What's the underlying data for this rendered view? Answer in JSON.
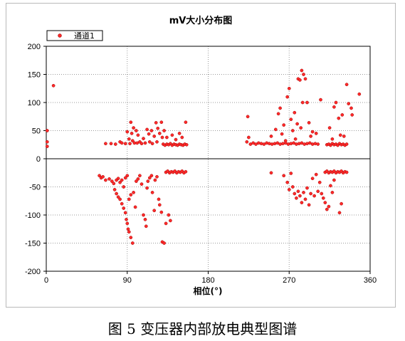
{
  "figure_caption": "图 5  变压器内部放电典型图谱",
  "colors": {
    "point_fill": "#ff2a2a",
    "point_stroke": "#a00000",
    "grid": "#9a9a9a",
    "axis": "#000000",
    "zero_line": "#000000"
  },
  "chart_data": {
    "type": "scatter",
    "title": "mV大小分布图",
    "xlabel": "相位(°)",
    "ylabel": "",
    "xlim": [
      0,
      360
    ],
    "ylim": [
      -200,
      200
    ],
    "x_ticks": [
      0,
      90,
      180,
      270,
      360
    ],
    "y_ticks": [
      200,
      150,
      100,
      50,
      0,
      -50,
      -100,
      -150,
      -200
    ],
    "grid": true,
    "legend_position": "top-left",
    "series": [
      {
        "name": "通道1",
        "points": [
          [
            1,
            50
          ],
          [
            1,
            30
          ],
          [
            1,
            22
          ],
          [
            8,
            130
          ],
          [
            66,
            27
          ],
          [
            72,
            27
          ],
          [
            77,
            26
          ],
          [
            82,
            30
          ],
          [
            84,
            28
          ],
          [
            88,
            27
          ],
          [
            90,
            48
          ],
          [
            92,
            35
          ],
          [
            93,
            27
          ],
          [
            94,
            65
          ],
          [
            95,
            45
          ],
          [
            96,
            32
          ],
          [
            97,
            55
          ],
          [
            98,
            28
          ],
          [
            100,
            50
          ],
          [
            101,
            28
          ],
          [
            102,
            42
          ],
          [
            104,
            30
          ],
          [
            106,
            27
          ],
          [
            108,
            36
          ],
          [
            110,
            28
          ],
          [
            112,
            52
          ],
          [
            114,
            44
          ],
          [
            115,
            30
          ],
          [
            117,
            50
          ],
          [
            118,
            27
          ],
          [
            120,
            40
          ],
          [
            122,
            64
          ],
          [
            123,
            30
          ],
          [
            124,
            54
          ],
          [
            126,
            45
          ],
          [
            128,
            65
          ],
          [
            129,
            38
          ],
          [
            131,
            50
          ],
          [
            130,
            26
          ],
          [
            132,
            24
          ],
          [
            134,
            26
          ],
          [
            136,
            25
          ],
          [
            138,
            27
          ],
          [
            140,
            24
          ],
          [
            142,
            26
          ],
          [
            144,
            25
          ],
          [
            146,
            24
          ],
          [
            148,
            26
          ],
          [
            150,
            25
          ],
          [
            152,
            24
          ],
          [
            154,
            26
          ],
          [
            156,
            25
          ],
          [
            134,
            38
          ],
          [
            140,
            42
          ],
          [
            144,
            34
          ],
          [
            148,
            45
          ],
          [
            151,
            38
          ],
          [
            155,
            65
          ],
          [
            59,
            -30
          ],
          [
            61,
            -34
          ],
          [
            63,
            -32
          ],
          [
            66,
            -38
          ],
          [
            70,
            -36
          ],
          [
            73,
            -40
          ],
          [
            75,
            -44
          ],
          [
            78,
            -38
          ],
          [
            80,
            -35
          ],
          [
            82,
            -42
          ],
          [
            84,
            -38
          ],
          [
            86,
            -50
          ],
          [
            88,
            -34
          ],
          [
            90,
            -30
          ],
          [
            76,
            -55
          ],
          [
            78,
            -62
          ],
          [
            80,
            -68
          ],
          [
            82,
            -72
          ],
          [
            84,
            -80
          ],
          [
            86,
            -88
          ],
          [
            88,
            -96
          ],
          [
            89,
            -108
          ],
          [
            90,
            -115
          ],
          [
            91,
            -125
          ],
          [
            92,
            -130
          ],
          [
            94,
            -140
          ],
          [
            96,
            -150
          ],
          [
            92,
            -72
          ],
          [
            94,
            -64
          ],
          [
            97,
            -60
          ],
          [
            99,
            -86
          ],
          [
            100,
            -40
          ],
          [
            102,
            -36
          ],
          [
            104,
            -30
          ],
          [
            106,
            -45
          ],
          [
            108,
            -100
          ],
          [
            110,
            -108
          ],
          [
            111,
            -120
          ],
          [
            112,
            -52
          ],
          [
            113,
            -40
          ],
          [
            115,
            -34
          ],
          [
            117,
            -30
          ],
          [
            118,
            -60
          ],
          [
            120,
            -92
          ],
          [
            121,
            -38
          ],
          [
            123,
            -32
          ],
          [
            125,
            -72
          ],
          [
            126,
            -82
          ],
          [
            128,
            -95
          ],
          [
            129,
            -148
          ],
          [
            131,
            -150
          ],
          [
            133,
            -115
          ],
          [
            136,
            -100
          ],
          [
            138,
            -110
          ],
          [
            133,
            -24
          ],
          [
            135,
            -22
          ],
          [
            137,
            -25
          ],
          [
            139,
            -23
          ],
          [
            141,
            -24
          ],
          [
            143,
            -22
          ],
          [
            145,
            -25
          ],
          [
            147,
            -23
          ],
          [
            149,
            -24
          ],
          [
            151,
            -22
          ],
          [
            153,
            -25
          ],
          [
            155,
            -23
          ],
          [
            223,
            30
          ],
          [
            225,
            38
          ],
          [
            227,
            26
          ],
          [
            230,
            28
          ],
          [
            233,
            26
          ],
          [
            236,
            28
          ],
          [
            239,
            27
          ],
          [
            242,
            26
          ],
          [
            245,
            28
          ],
          [
            248,
            27
          ],
          [
            251,
            26
          ],
          [
            254,
            27
          ],
          [
            257,
            28
          ],
          [
            260,
            26
          ],
          [
            263,
            27
          ],
          [
            266,
            28
          ],
          [
            269,
            26
          ],
          [
            272,
            27
          ],
          [
            275,
            28
          ],
          [
            278,
            26
          ],
          [
            281,
            27
          ],
          [
            284,
            28
          ],
          [
            287,
            26
          ],
          [
            290,
            27
          ],
          [
            293,
            28
          ],
          [
            296,
            26
          ],
          [
            299,
            27
          ],
          [
            302,
            26
          ],
          [
            224,
            75
          ],
          [
            250,
            40
          ],
          [
            255,
            52
          ],
          [
            258,
            80
          ],
          [
            260,
            90
          ],
          [
            262,
            44
          ],
          [
            264,
            60
          ],
          [
            266,
            32
          ],
          [
            268,
            110
          ],
          [
            270,
            125
          ],
          [
            272,
            70
          ],
          [
            274,
            50
          ],
          [
            276,
            82
          ],
          [
            277,
            35
          ],
          [
            279,
            62
          ],
          [
            280,
            142
          ],
          [
            282,
            140
          ],
          [
            283,
            55
          ],
          [
            284,
            157
          ],
          [
            285,
            100
          ],
          [
            286,
            150
          ],
          [
            288,
            142
          ],
          [
            290,
            100
          ],
          [
            292,
            64
          ],
          [
            294,
            40
          ],
          [
            296,
            48
          ],
          [
            300,
            45
          ],
          [
            305,
            105
          ],
          [
            312,
            25
          ],
          [
            314,
            26
          ],
          [
            316,
            24
          ],
          [
            318,
            27
          ],
          [
            320,
            25
          ],
          [
            322,
            26
          ],
          [
            324,
            24
          ],
          [
            326,
            27
          ],
          [
            328,
            25
          ],
          [
            330,
            26
          ],
          [
            332,
            24
          ],
          [
            334,
            26
          ],
          [
            315,
            55
          ],
          [
            318,
            35
          ],
          [
            320,
            92
          ],
          [
            322,
            100
          ],
          [
            325,
            72
          ],
          [
            327,
            42
          ],
          [
            329,
            78
          ],
          [
            331,
            40
          ],
          [
            334,
            132
          ],
          [
            336,
            98
          ],
          [
            339,
            90
          ],
          [
            340,
            78
          ],
          [
            348,
            115
          ],
          [
            250,
            -25
          ],
          [
            264,
            -30
          ],
          [
            268,
            -42
          ],
          [
            270,
            -55
          ],
          [
            272,
            -26
          ],
          [
            274,
            -50
          ],
          [
            276,
            -62
          ],
          [
            278,
            -70
          ],
          [
            280,
            -58
          ],
          [
            282,
            -66
          ],
          [
            284,
            -78
          ],
          [
            286,
            -60
          ],
          [
            288,
            -72
          ],
          [
            290,
            -52
          ],
          [
            292,
            -82
          ],
          [
            294,
            -62
          ],
          [
            296,
            -35
          ],
          [
            298,
            -66
          ],
          [
            300,
            -28
          ],
          [
            302,
            -58
          ],
          [
            304,
            -42
          ],
          [
            306,
            -62
          ],
          [
            308,
            -70
          ],
          [
            310,
            -78
          ],
          [
            312,
            -90
          ],
          [
            314,
            -85
          ],
          [
            316,
            -48
          ],
          [
            318,
            -60
          ],
          [
            320,
            -38
          ],
          [
            310,
            -24
          ],
          [
            312,
            -22
          ],
          [
            314,
            -25
          ],
          [
            316,
            -23
          ],
          [
            318,
            -24
          ],
          [
            320,
            -22
          ],
          [
            322,
            -25
          ],
          [
            324,
            -23
          ],
          [
            326,
            -24
          ],
          [
            328,
            -22
          ],
          [
            330,
            -25
          ],
          [
            332,
            -23
          ],
          [
            334,
            -24
          ],
          [
            326,
            -96
          ],
          [
            328,
            -80
          ]
        ]
      }
    ]
  }
}
